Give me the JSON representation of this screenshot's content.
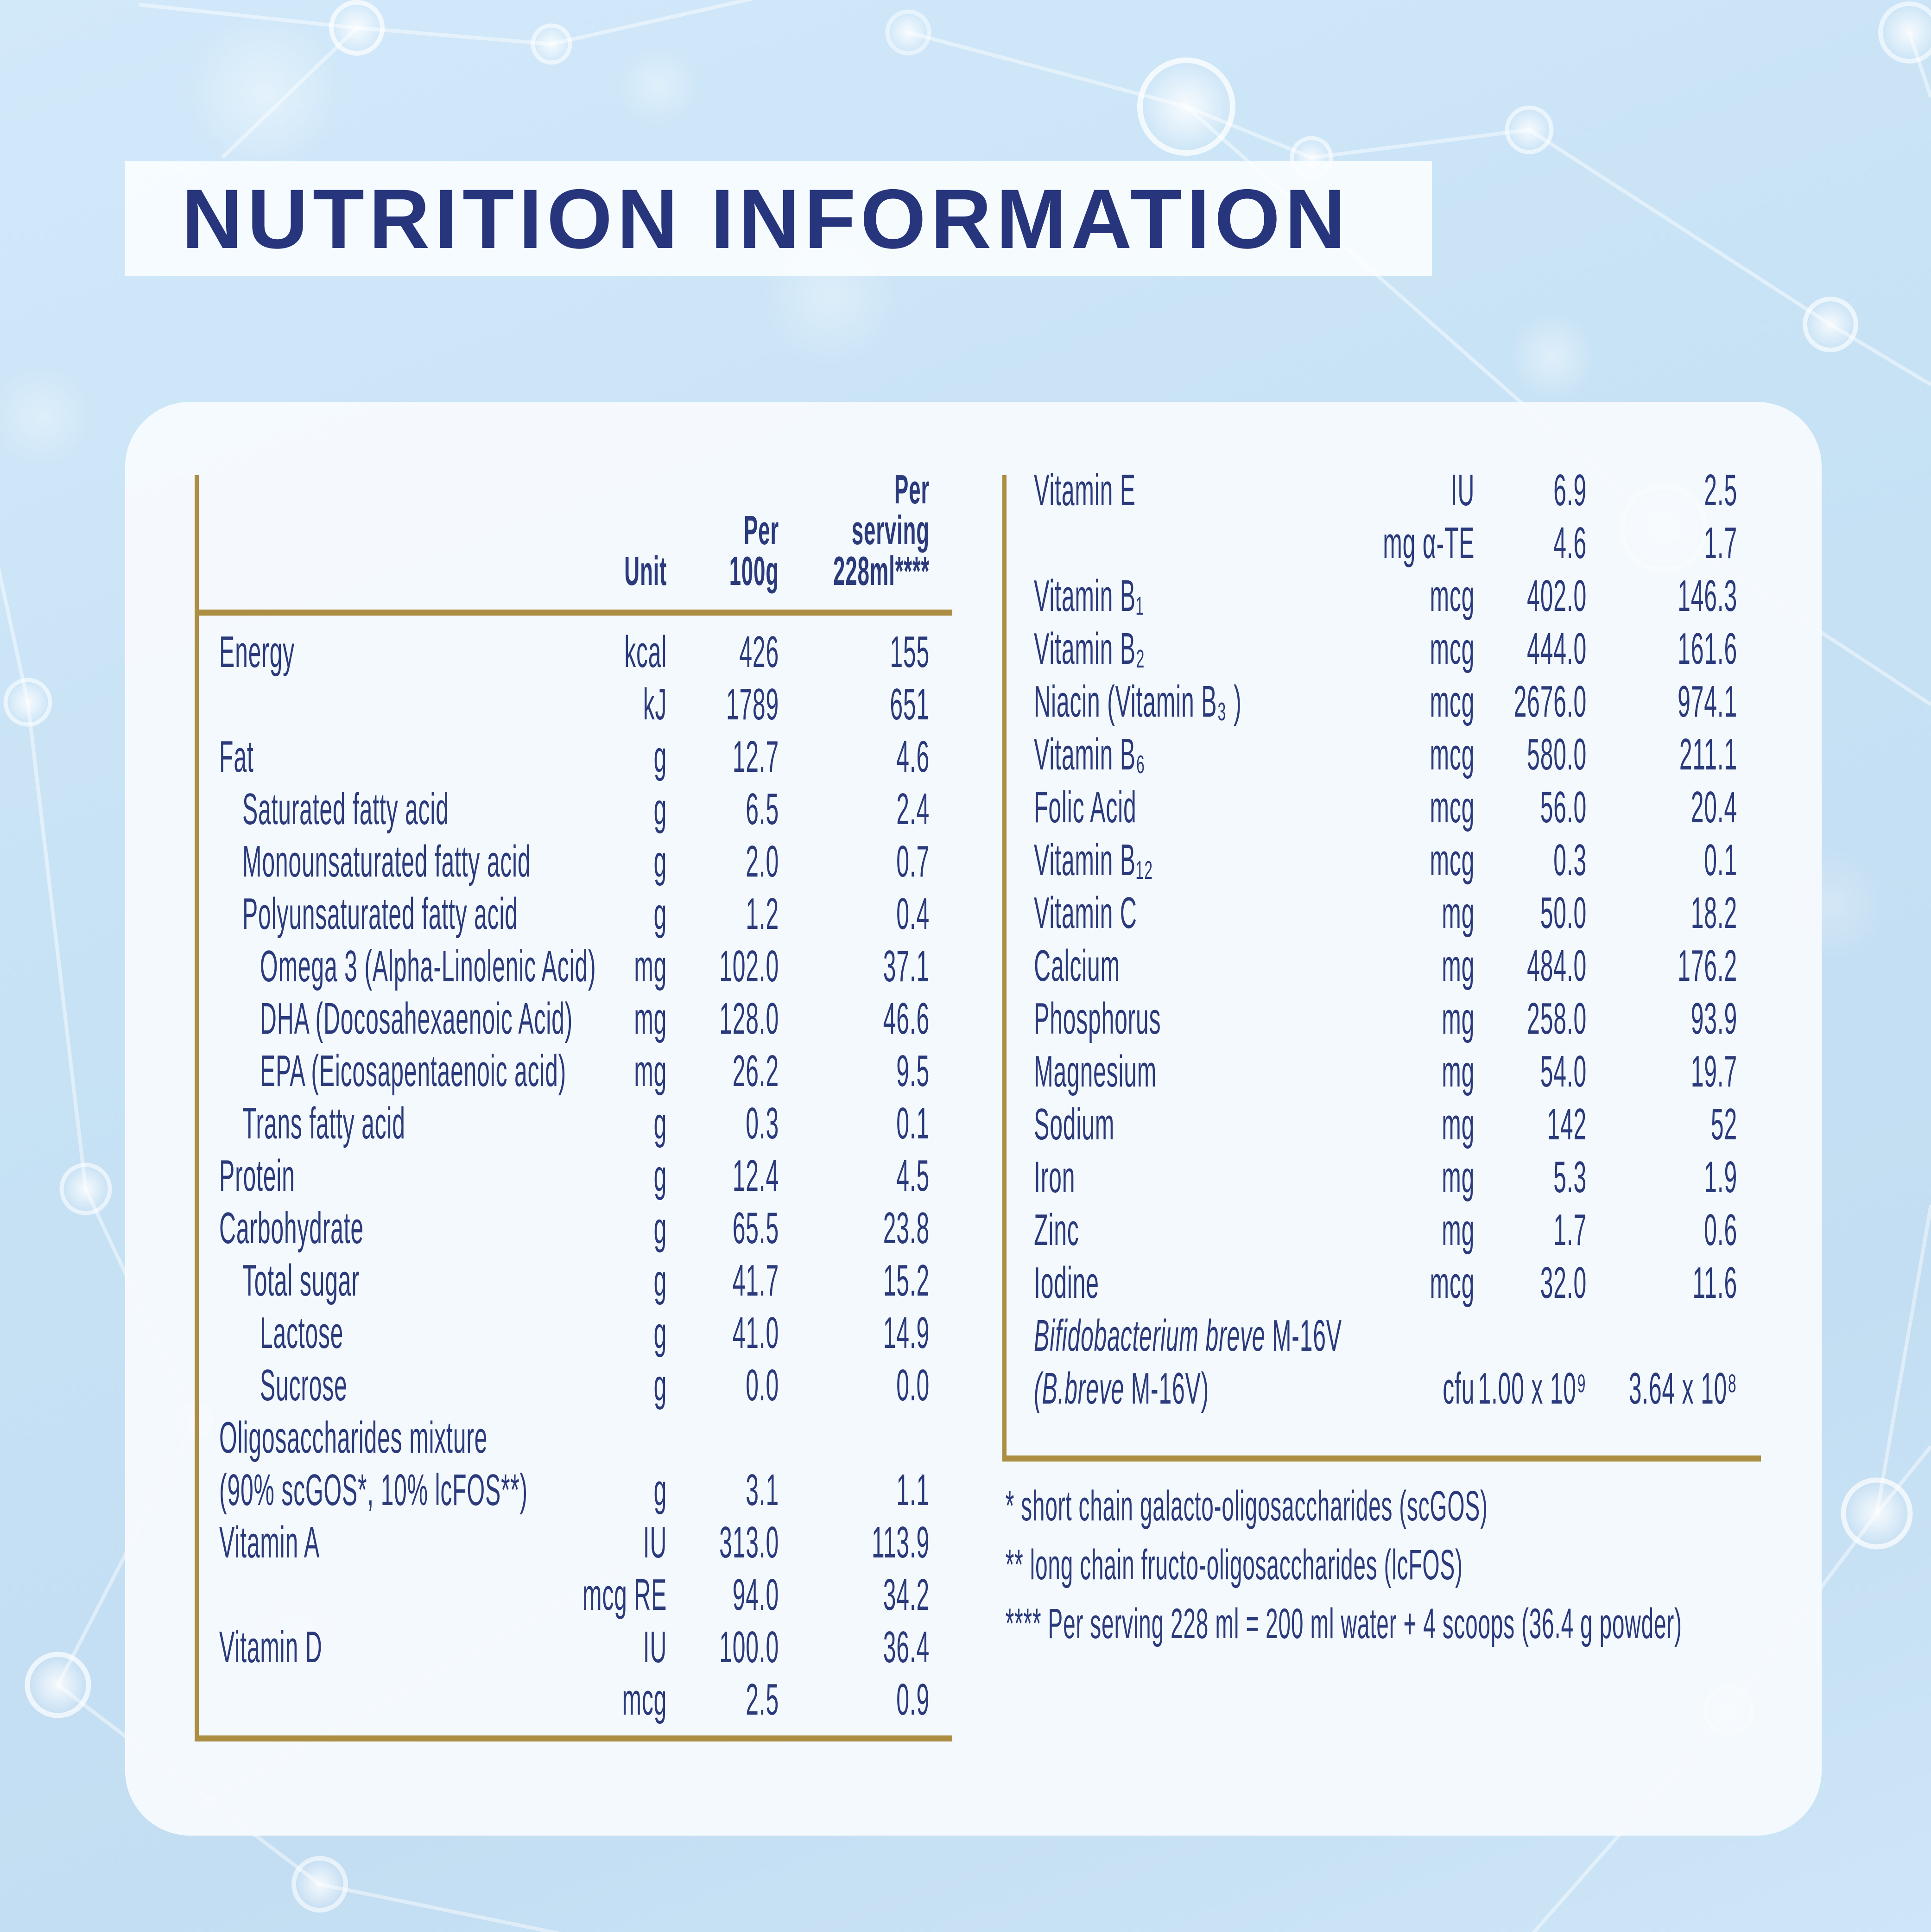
{
  "title": "NUTRITION INFORMATION",
  "colors": {
    "navy": "#2a3a7b",
    "gold": "#ac8e42",
    "background": "#c7e2f5",
    "card": "#f7fbfe",
    "band": "#fcfeff"
  },
  "table_left": {
    "headers": {
      "unit": "Unit",
      "per100": [
        "Per",
        "100g"
      ],
      "serving": [
        "Per",
        "serving",
        "228ml****"
      ]
    },
    "rows": [
      {
        "label": "Energy",
        "indent": 0,
        "unit": "kcal",
        "per100": "426",
        "serving": "155"
      },
      {
        "label": "",
        "indent": 0,
        "unit": "kJ",
        "per100": "1789",
        "serving": "651"
      },
      {
        "label": "Fat",
        "indent": 0,
        "unit": "g",
        "per100": "12.7",
        "serving": "4.6"
      },
      {
        "label": "Saturated fatty acid",
        "indent": 1,
        "unit": "g",
        "per100": "6.5",
        "serving": "2.4"
      },
      {
        "label": "Monounsaturated fatty acid",
        "indent": 1,
        "unit": "g",
        "per100": "2.0",
        "serving": "0.7"
      },
      {
        "label": "Polyunsaturated fatty acid",
        "indent": 1,
        "unit": "g",
        "per100": "1.2",
        "serving": "0.4"
      },
      {
        "label": "Omega 3 (Alpha-Linolenic Acid)",
        "indent": 2,
        "unit": "mg",
        "per100": "102.0",
        "serving": "37.1"
      },
      {
        "label": "DHA (Docosahexaenoic Acid)",
        "indent": 2,
        "unit": "mg",
        "per100": "128.0",
        "serving": "46.6"
      },
      {
        "label": "EPA (Eicosapentaenoic acid)",
        "indent": 2,
        "unit": "mg",
        "per100": "26.2",
        "serving": "9.5"
      },
      {
        "label": "Trans fatty acid",
        "indent": 1,
        "unit": "g",
        "per100": "0.3",
        "serving": "0.1"
      },
      {
        "label": "Protein",
        "indent": 0,
        "unit": "g",
        "per100": "12.4",
        "serving": "4.5"
      },
      {
        "label": "Carbohydrate",
        "indent": 0,
        "unit": "g",
        "per100": "65.5",
        "serving": "23.8"
      },
      {
        "label": "Total sugar",
        "indent": 1,
        "unit": "g",
        "per100": "41.7",
        "serving": "15.2"
      },
      {
        "label": "Lactose",
        "indent": 2,
        "unit": "g",
        "per100": "41.0",
        "serving": "14.9"
      },
      {
        "label": "Sucrose",
        "indent": 2,
        "unit": "g",
        "per100": "0.0",
        "serving": "0.0"
      },
      {
        "label": "Oligosaccharides mixture",
        "indent": 0,
        "unit": "",
        "per100": "",
        "serving": ""
      },
      {
        "label": "(90% scGOS*, 10% lcFOS**)",
        "indent": 0,
        "unit": "g",
        "per100": "3.1",
        "serving": "1.1"
      },
      {
        "label": "Vitamin A",
        "indent": 0,
        "unit": "IU",
        "per100": "313.0",
        "serving": "113.9"
      },
      {
        "label": "",
        "indent": 0,
        "unit": "mcg RE",
        "per100": "94.0",
        "serving": "34.2"
      },
      {
        "label": "Vitamin D",
        "indent": 0,
        "unit": "IU",
        "per100": "100.0",
        "serving": "36.4"
      },
      {
        "label": "",
        "indent": 0,
        "unit": "mcg",
        "per100": "2.5",
        "serving": "0.9"
      }
    ]
  },
  "table_right": {
    "rows": [
      {
        "label": "Vitamin E",
        "indent": 0,
        "unit": "IU",
        "per100": "6.9",
        "serving": "2.5"
      },
      {
        "label": "",
        "indent": 0,
        "unit": "mg α-TE",
        "per100": "4.6",
        "serving": "1.7"
      },
      {
        "label": "Vitamin B₁",
        "indent": 0,
        "unit": "mcg",
        "per100": "402.0",
        "serving": "146.3"
      },
      {
        "label": "Vitamin B₂",
        "indent": 0,
        "unit": "mcg",
        "per100": "444.0",
        "serving": "161.6"
      },
      {
        "label": "Niacin (Vitamin B₃ )",
        "indent": 0,
        "unit": "mcg",
        "per100": "2676.0",
        "serving": "974.1"
      },
      {
        "label": "Vitamin B₆",
        "indent": 0,
        "unit": "mcg",
        "per100": "580.0",
        "serving": "211.1"
      },
      {
        "label": "Folic Acid",
        "indent": 0,
        "unit": "mcg",
        "per100": "56.0",
        "serving": "20.4"
      },
      {
        "label": "Vitamin B₁₂",
        "indent": 0,
        "unit": "mcg",
        "per100": "0.3",
        "serving": "0.1"
      },
      {
        "label": "Vitamin C",
        "indent": 0,
        "unit": "mg",
        "per100": "50.0",
        "serving": "18.2"
      },
      {
        "label": "Calcium",
        "indent": 0,
        "unit": "mg",
        "per100": "484.0",
        "serving": "176.2"
      },
      {
        "label": "Phosphorus",
        "indent": 0,
        "unit": "mg",
        "per100": "258.0",
        "serving": "93.9"
      },
      {
        "label": "Magnesium",
        "indent": 0,
        "unit": "mg",
        "per100": "54.0",
        "serving": "19.7"
      },
      {
        "label": "Sodium",
        "indent": 0,
        "unit": "mg",
        "per100": "142",
        "serving": "52"
      },
      {
        "label": "Iron",
        "indent": 0,
        "unit": "mg",
        "per100": "5.3",
        "serving": "1.9"
      },
      {
        "label": "Zinc",
        "indent": 0,
        "unit": "mg",
        "per100": "1.7",
        "serving": "0.6"
      },
      {
        "label": "Iodine",
        "indent": 0,
        "unit": "mcg",
        "per100": "32.0",
        "serving": "11.6"
      },
      {
        "label_italic": "Bifidobacterium breve",
        "label_rest": " M-16V",
        "indent": 0,
        "unit": "",
        "per100": "",
        "serving": ""
      },
      {
        "label_italic": "(B.breve",
        "label_rest": " M-16V)",
        "indent": 0,
        "unit": "cfu",
        "per100": "1.00 x 10⁹",
        "serving": "3.64 x 10⁸"
      }
    ]
  },
  "footnotes": [
    "* short chain galacto-oligosaccharides (scGOS)",
    "** long chain fructo-oligosaccharides (lcFOS)",
    "**** Per serving 228 ml = 200 ml water + 4 scoops (36.4 g powder)"
  ]
}
